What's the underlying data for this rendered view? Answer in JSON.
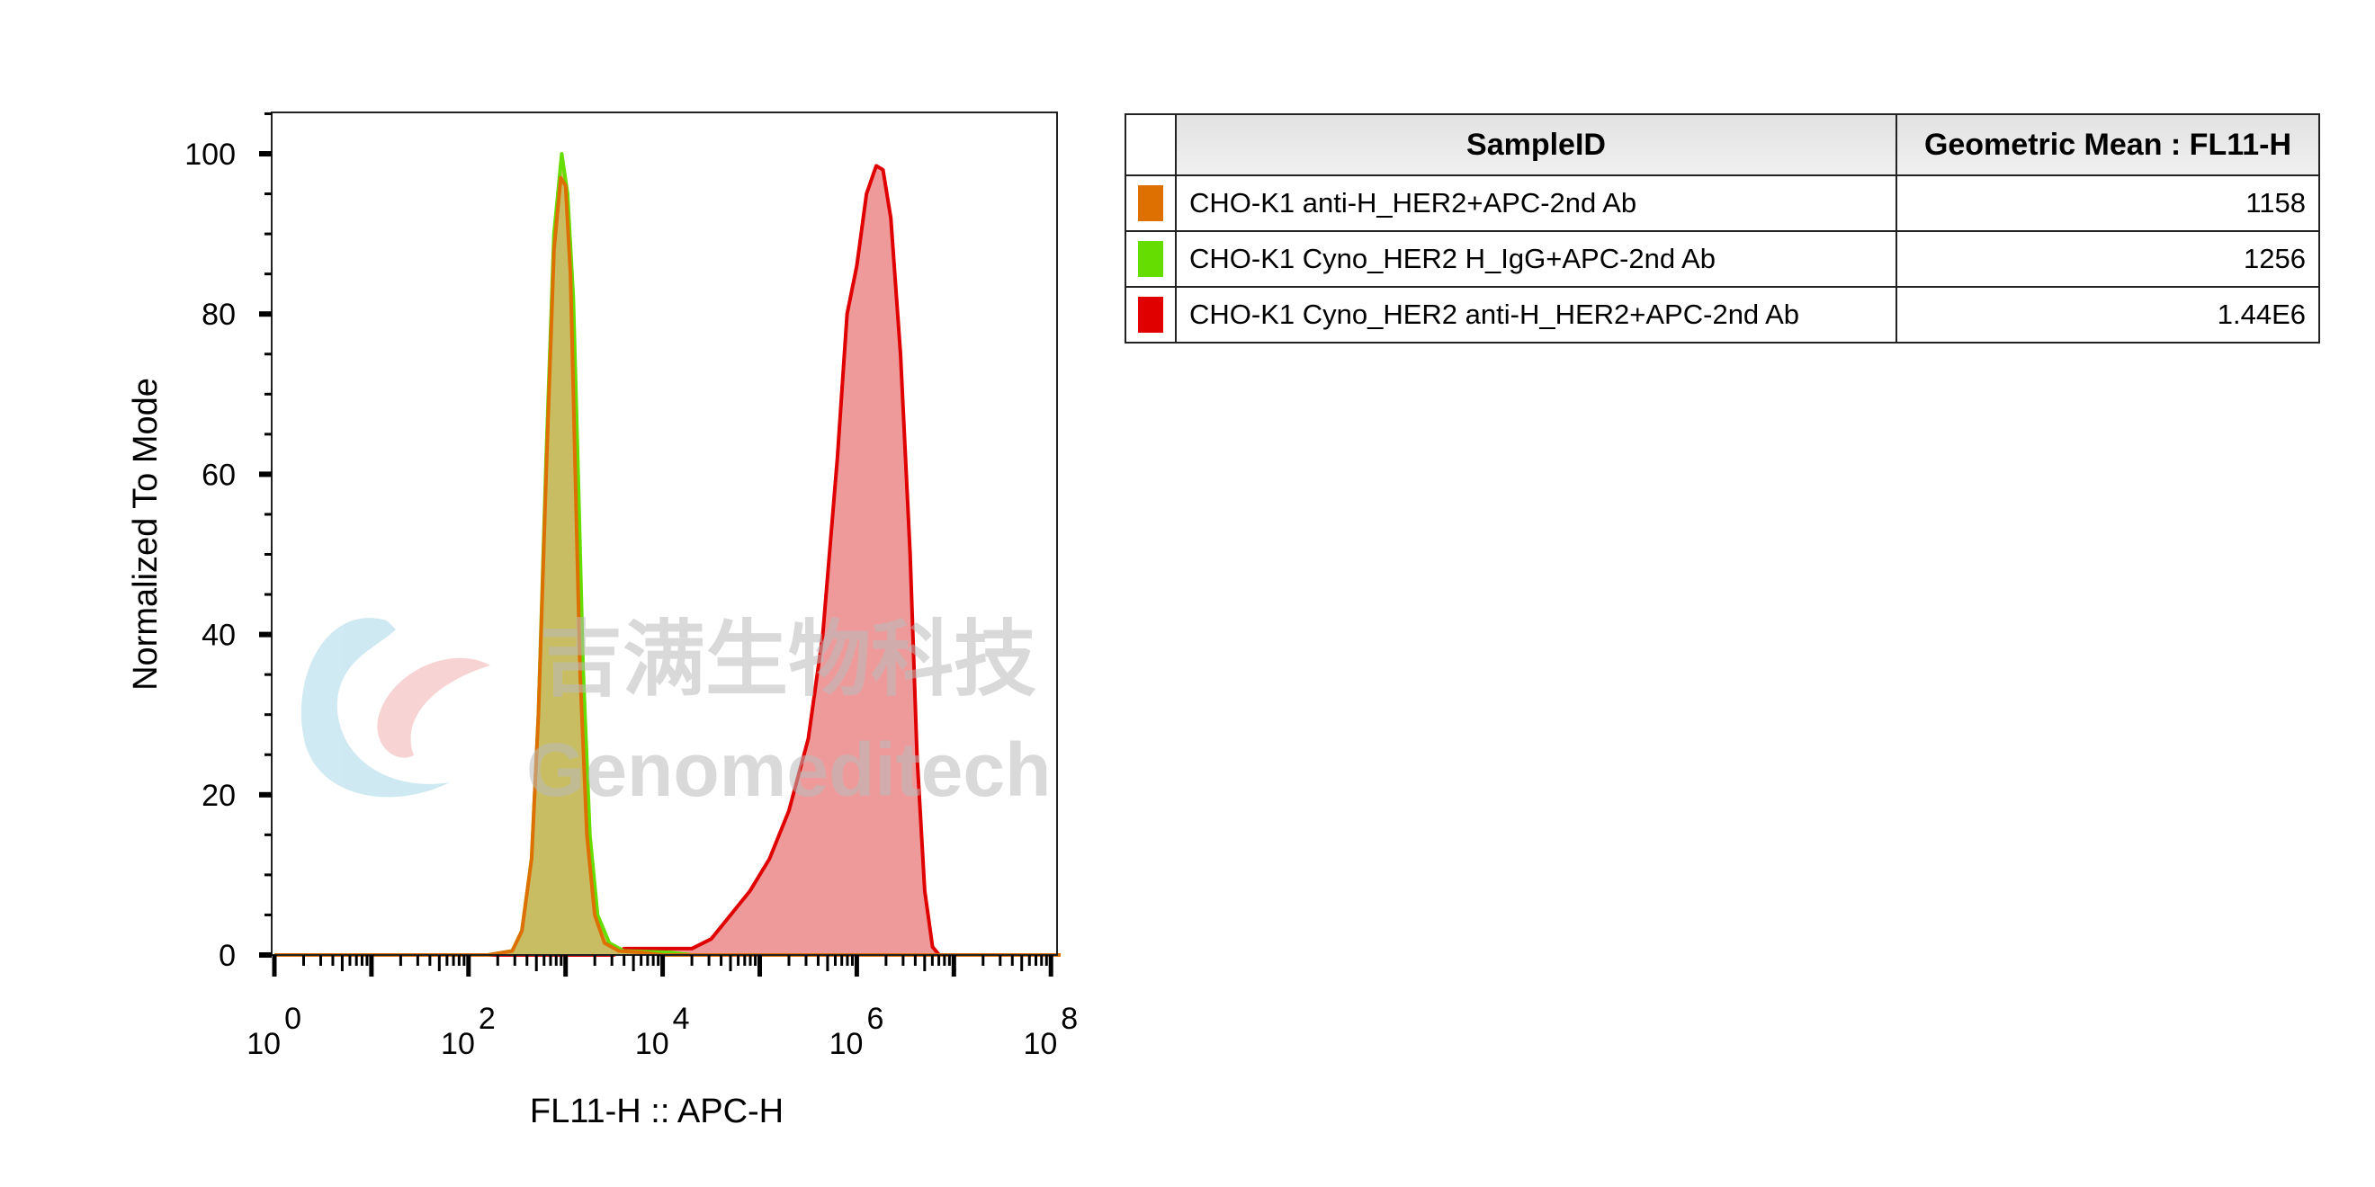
{
  "chart_data": {
    "type": "area",
    "title": "",
    "xlabel": "FL11-H :: APC-H",
    "ylabel": "Normalized To Mode",
    "xscale": "log",
    "xlim_log10": [
      0,
      8.1
    ],
    "ylim": [
      0,
      105
    ],
    "yticks": [
      0,
      20,
      40,
      60,
      80,
      100
    ],
    "xticks": [
      {
        "base": "10",
        "exp": "0",
        "log": 0
      },
      {
        "base": "10",
        "exp": "2",
        "log": 2
      },
      {
        "base": "10",
        "exp": "4",
        "log": 4
      },
      {
        "base": "10",
        "exp": "6",
        "log": 6
      },
      {
        "base": "10",
        "exp": "8",
        "log": 8
      }
    ],
    "series": [
      {
        "name": "CHO-K1 Cyno_HER2 anti-H_HER2+APC-2nd Ab",
        "color": "#e00000",
        "fill": "#ee9a9a",
        "points_log10x_y": [
          [
            0,
            0
          ],
          [
            3.5,
            0
          ],
          [
            3.6,
            0.8
          ],
          [
            4.3,
            0.8
          ],
          [
            4.5,
            2
          ],
          [
            4.7,
            5
          ],
          [
            4.9,
            8
          ],
          [
            5.1,
            12
          ],
          [
            5.3,
            18
          ],
          [
            5.5,
            27
          ],
          [
            5.65,
            40
          ],
          [
            5.8,
            62
          ],
          [
            5.9,
            80
          ],
          [
            6.0,
            86
          ],
          [
            6.1,
            95
          ],
          [
            6.2,
            98.5
          ],
          [
            6.27,
            98
          ],
          [
            6.35,
            92
          ],
          [
            6.45,
            75
          ],
          [
            6.55,
            50
          ],
          [
            6.62,
            25
          ],
          [
            6.7,
            8
          ],
          [
            6.78,
            1
          ],
          [
            6.85,
            0
          ],
          [
            8.1,
            0
          ]
        ]
      },
      {
        "name": "CHO-K1 Cyno_HER2 H_IgG+APC-2nd Ab",
        "color": "#66dd00",
        "fill": "#c8bc60",
        "points_log10x_y": [
          [
            0,
            0
          ],
          [
            2.2,
            0
          ],
          [
            2.45,
            0.5
          ],
          [
            2.55,
            3
          ],
          [
            2.65,
            12
          ],
          [
            2.72,
            30
          ],
          [
            2.8,
            62
          ],
          [
            2.88,
            90
          ],
          [
            2.96,
            100
          ],
          [
            3.02,
            95
          ],
          [
            3.08,
            82
          ],
          [
            3.13,
            60
          ],
          [
            3.18,
            36
          ],
          [
            3.25,
            15
          ],
          [
            3.33,
            5
          ],
          [
            3.45,
            1.5
          ],
          [
            3.6,
            0.5
          ],
          [
            4.1,
            0.3
          ],
          [
            4.3,
            0
          ],
          [
            8.1,
            0
          ]
        ]
      },
      {
        "name": "CHO-K1 anti-H_HER2+APC-2nd Ab",
        "color": "#dd7000",
        "fill": "#c8bc60",
        "points_log10x_y": [
          [
            0,
            0
          ],
          [
            2.2,
            0
          ],
          [
            2.45,
            0.5
          ],
          [
            2.55,
            3
          ],
          [
            2.65,
            12
          ],
          [
            2.72,
            30
          ],
          [
            2.8,
            60
          ],
          [
            2.88,
            88
          ],
          [
            2.95,
            97
          ],
          [
            3.0,
            96
          ],
          [
            3.05,
            85
          ],
          [
            3.1,
            60
          ],
          [
            3.15,
            35
          ],
          [
            3.22,
            15
          ],
          [
            3.3,
            5
          ],
          [
            3.4,
            1.5
          ],
          [
            3.55,
            0.5
          ],
          [
            3.8,
            0.3
          ],
          [
            4.0,
            0
          ],
          [
            8.1,
            0
          ]
        ]
      }
    ]
  },
  "legend_table": {
    "headers": {
      "sample": "SampleID",
      "value": "Geometric Mean : FL11-H"
    },
    "rows": [
      {
        "color": "#dd7000",
        "sample": "CHO-K1 anti-H_HER2+APC-2nd Ab",
        "value": "1158"
      },
      {
        "color": "#66dd00",
        "sample": "CHO-K1 Cyno_HER2 H_IgG+APC-2nd Ab",
        "value": "1256"
      },
      {
        "color": "#e00000",
        "sample": "CHO-K1 Cyno_HER2 anti-H_HER2+APC-2nd Ab",
        "value": "1.44E6"
      }
    ]
  },
  "watermark": {
    "cn": "吉满生物科技",
    "en": "Genomeditech"
  }
}
